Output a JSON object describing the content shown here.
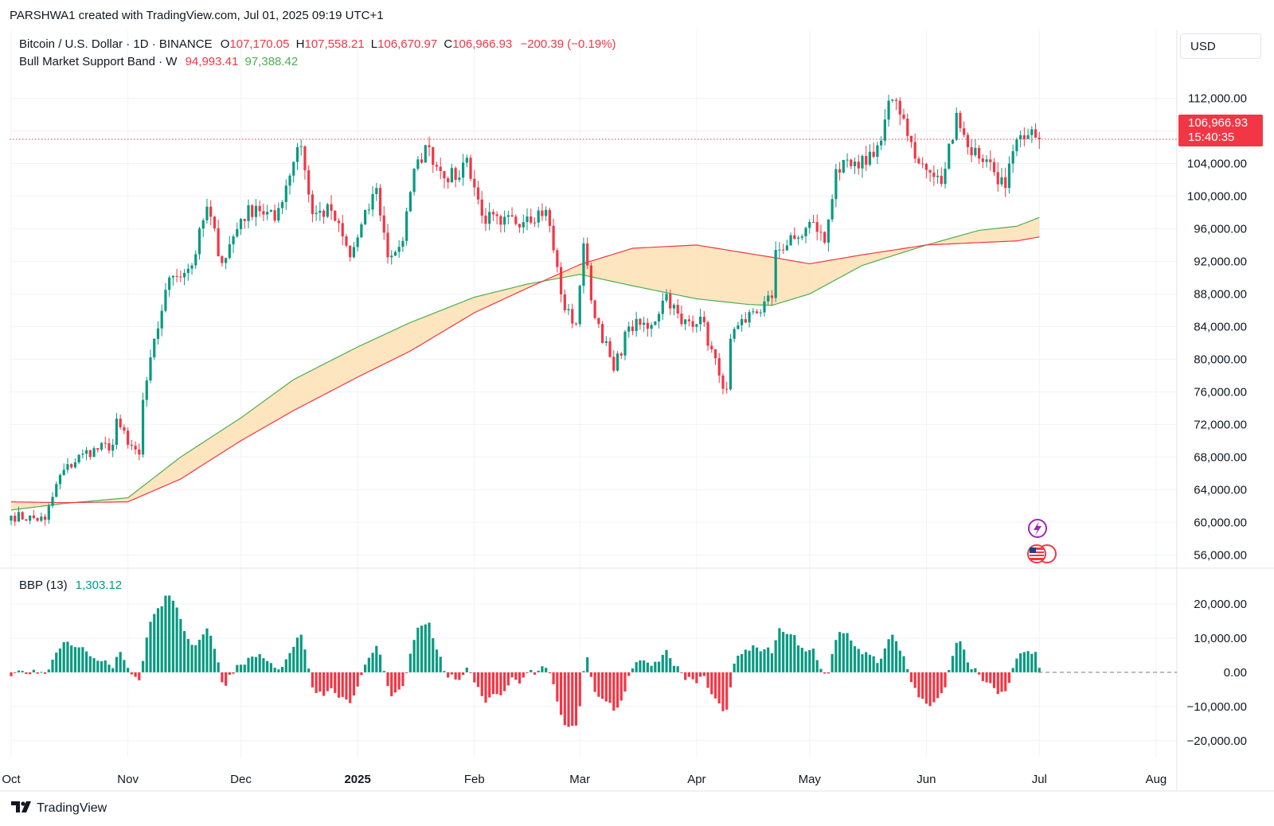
{
  "header": {
    "author_line": "PARSHWA1 created with TradingView.com, Jul 01, 2025 09:19 UTC+1",
    "symbol": "Bitcoin / U.S. Dollar · 1D · BINANCE",
    "o_label": "O",
    "o_value": "107,170.05",
    "h_label": "H",
    "h_value": "107,558.21",
    "l_label": "L",
    "l_value": "106,670.97",
    "c_label": "C",
    "c_value": "106,966.93",
    "change": "−200.39 (−0.19%)",
    "indicator_name": "Bull Market Support Band · W",
    "band_low": "94,993.41",
    "band_high": "97,388.42",
    "bbp_name": "BBP (13)",
    "bbp_value": "1,303.12"
  },
  "currency_button": "USD",
  "price_tag": {
    "price": "106,966.93",
    "countdown": "15:40:35"
  },
  "branding": "TradingView",
  "colors": {
    "up": "#089981",
    "down": "#f23645",
    "band_fill": "#fde0b4",
    "sma": "#4caf50",
    "ema": "#f23645",
    "grid": "#f0f3fa"
  },
  "chart_data": [
    {
      "type": "candlestick",
      "title": "Bitcoin / U.S. Dollar · 1D · BINANCE",
      "x_ticks": [
        "Oct",
        "Nov",
        "Dec",
        "2025",
        "Feb",
        "Mar",
        "Apr",
        "May",
        "Jun",
        "Jul",
        "Aug"
      ],
      "y_ticks": [
        "112,000.00",
        "108,000.00",
        "104,000.00",
        "100,000.00",
        "96,000.00",
        "92,000.00",
        "88,000.00",
        "84,000.00",
        "80,000.00",
        "76,000.00",
        "72,000.00",
        "68,000.00",
        "64,000.00",
        "60,000.00",
        "56,000.00"
      ],
      "ylim": [
        53000,
        118000
      ],
      "last_close": 106966.93,
      "close_waypoints": [
        [
          "2024-10-01",
          60800
        ],
        [
          "2024-10-10",
          60300
        ],
        [
          "2024-10-14",
          65800
        ],
        [
          "2024-10-20",
          68400
        ],
        [
          "2024-10-28",
          69500
        ],
        [
          "2024-10-29",
          72700
        ],
        [
          "2024-11-01",
          69500
        ],
        [
          "2024-11-04",
          68300
        ],
        [
          "2024-11-05",
          75000
        ],
        [
          "2024-11-11",
          88500
        ],
        [
          "2024-11-13",
          90200
        ],
        [
          "2024-11-18",
          91500
        ],
        [
          "2024-11-22",
          98700
        ],
        [
          "2024-11-26",
          91800
        ],
        [
          "2024-12-01",
          97200
        ],
        [
          "2024-12-05",
          98800
        ],
        [
          "2024-12-10",
          97000
        ],
        [
          "2024-12-16",
          106000
        ],
        [
          "2024-12-17",
          106100
        ],
        [
          "2024-12-20",
          97800
        ],
        [
          "2024-12-25",
          98200
        ],
        [
          "2024-12-30",
          92500
        ],
        [
          "2025-01-06",
          101000
        ],
        [
          "2025-01-09",
          92500
        ],
        [
          "2025-01-13",
          94500
        ],
        [
          "2025-01-15",
          100500
        ],
        [
          "2025-01-17",
          104500
        ],
        [
          "2025-01-20",
          106000
        ],
        [
          "2025-01-22",
          103600
        ],
        [
          "2025-01-27",
          102000
        ],
        [
          "2025-01-30",
          104700
        ],
        [
          "2025-02-03",
          97600
        ],
        [
          "2025-02-08",
          96500
        ],
        [
          "2025-02-15",
          97500
        ],
        [
          "2025-02-20",
          98300
        ],
        [
          "2025-02-25",
          86000
        ],
        [
          "2025-02-28",
          84300
        ],
        [
          "2025-03-02",
          94200
        ],
        [
          "2025-03-04",
          87200
        ],
        [
          "2025-03-10",
          78600
        ],
        [
          "2025-03-14",
          84000
        ],
        [
          "2025-03-20",
          84200
        ],
        [
          "2025-03-24",
          88000
        ],
        [
          "2025-03-28",
          84300
        ],
        [
          "2025-04-02",
          85200
        ],
        [
          "2025-04-07",
          78000
        ],
        [
          "2025-04-09",
          76300
        ],
        [
          "2025-04-10",
          82500
        ],
        [
          "2025-04-14",
          84500
        ],
        [
          "2025-04-21",
          87500
        ],
        [
          "2025-04-22",
          93400
        ],
        [
          "2025-04-28",
          94900
        ],
        [
          "2025-05-02",
          96800
        ],
        [
          "2025-05-05",
          94300
        ],
        [
          "2025-05-08",
          103300
        ],
        [
          "2025-05-14",
          103400
        ],
        [
          "2025-05-20",
          106800
        ],
        [
          "2025-05-22",
          111700
        ],
        [
          "2025-05-26",
          109500
        ],
        [
          "2025-05-30",
          104000
        ],
        [
          "2025-06-05",
          101500
        ],
        [
          "2025-06-09",
          110200
        ],
        [
          "2025-06-12",
          106000
        ],
        [
          "2025-06-17",
          104500
        ],
        [
          "2025-06-22",
          101000
        ],
        [
          "2025-06-24",
          105500
        ],
        [
          "2025-06-27",
          107000
        ],
        [
          "2025-06-30",
          107170
        ],
        [
          "2025-07-01",
          106966
        ]
      ],
      "bull_market_support_band": {
        "sma_20w": [
          [
            "2024-10-01",
            61500
          ],
          [
            "2024-10-15",
            62300
          ],
          [
            "2024-11-01",
            63000
          ],
          [
            "2024-11-15",
            68000
          ],
          [
            "2024-12-01",
            72800
          ],
          [
            "2024-12-15",
            77500
          ],
          [
            "2025-01-01",
            81500
          ],
          [
            "2025-01-15",
            84500
          ],
          [
            "2025-02-01",
            87600
          ],
          [
            "2025-02-15",
            89200
          ],
          [
            "2025-03-01",
            90400
          ],
          [
            "2025-03-15",
            89000
          ],
          [
            "2025-04-01",
            87400
          ],
          [
            "2025-04-15",
            86700
          ],
          [
            "2025-04-21",
            86600
          ],
          [
            "2025-05-01",
            88000
          ],
          [
            "2025-05-15",
            91500
          ],
          [
            "2025-06-01",
            94000
          ],
          [
            "2025-06-15",
            95800
          ],
          [
            "2025-06-25",
            96300
          ],
          [
            "2025-07-01",
            97388.42
          ]
        ],
        "ema_21w": [
          [
            "2024-10-01",
            62500
          ],
          [
            "2024-10-15",
            62400
          ],
          [
            "2024-11-01",
            62500
          ],
          [
            "2024-11-15",
            65300
          ],
          [
            "2024-12-01",
            70000
          ],
          [
            "2024-12-15",
            73700
          ],
          [
            "2025-01-01",
            77800
          ],
          [
            "2025-01-15",
            81000
          ],
          [
            "2025-02-01",
            85700
          ],
          [
            "2025-02-15",
            88700
          ],
          [
            "2025-03-01",
            91600
          ],
          [
            "2025-03-15",
            93600
          ],
          [
            "2025-04-01",
            94000
          ],
          [
            "2025-04-21",
            92500
          ],
          [
            "2025-05-01",
            91700
          ],
          [
            "2025-05-15",
            92800
          ],
          [
            "2025-06-01",
            94000
          ],
          [
            "2025-06-15",
            94300
          ],
          [
            "2025-06-25",
            94500
          ],
          [
            "2025-07-01",
            94993.41
          ]
        ]
      }
    },
    {
      "type": "bar",
      "title": "BBP (13)",
      "y_ticks": [
        "20,000.00",
        "10,000.00",
        "0.00",
        "−10,000.00",
        "−20,000.00"
      ],
      "ylim": [
        -24000,
        23000
      ],
      "last_value": 1303.12
    }
  ]
}
